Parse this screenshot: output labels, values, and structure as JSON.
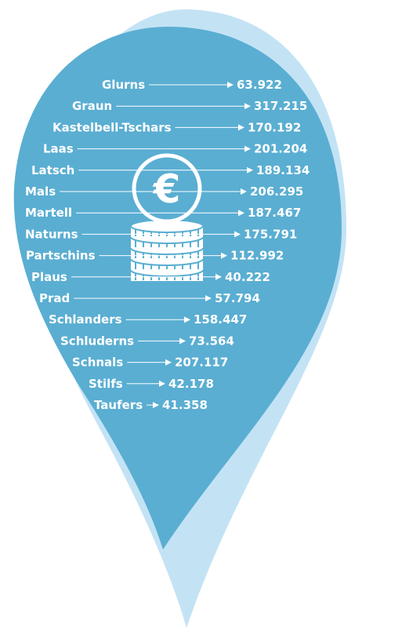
{
  "colors": {
    "pin_outer": "#c3e3f5",
    "pin_inner": "#5aaed2",
    "text": "#ffffff",
    "coin_fill": "#5aaed2",
    "coin_stroke": "#ffffff"
  },
  "icon": "euro-coin-stack-icon",
  "currency_symbol": "€",
  "rows": [
    {
      "label": "Glurns",
      "value": "63.922"
    },
    {
      "label": "Graun",
      "value": "317.215"
    },
    {
      "label": "Kastelbell-Tschars",
      "value": "170.192"
    },
    {
      "label": "Laas",
      "value": "201.204"
    },
    {
      "label": "Latsch",
      "value": "189.134"
    },
    {
      "label": "Mals",
      "value": "206.295"
    },
    {
      "label": "Martell",
      "value": "187.467"
    },
    {
      "label": "Naturns",
      "value": "175.791"
    },
    {
      "label": "Partschins",
      "value": "112.992"
    },
    {
      "label": "Plaus",
      "value": "40.222"
    },
    {
      "label": "Prad",
      "value": "57.794"
    },
    {
      "label": "Schlanders",
      "value": "158.447"
    },
    {
      "label": "Schluderns",
      "value": "73.564"
    },
    {
      "label": "Schnals",
      "value": "207.117"
    },
    {
      "label": "Stilfs",
      "value": "42.178"
    },
    {
      "label": "Taufers",
      "value": "41.358"
    }
  ]
}
